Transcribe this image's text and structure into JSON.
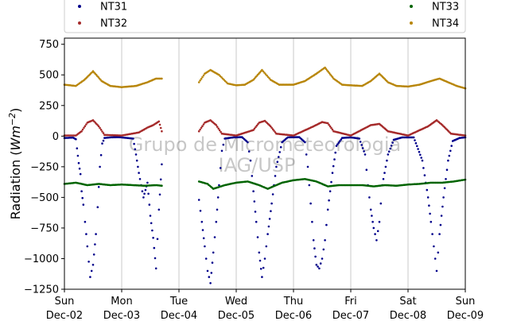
{
  "chart_data": {
    "type": "scatter",
    "ylabel": "Radiation (Wm⁻²)",
    "ylabel_main": "Radiation (",
    "ylabel_unit": "Wm",
    "ylabel_exp": "−2",
    "ylabel_close": ")",
    "xlabel": "",
    "ylim": [
      -1250,
      800
    ],
    "xlim": [
      0,
      7
    ],
    "yticks": [
      {
        "value": -1250,
        "label": "−1250"
      },
      {
        "value": -1000,
        "label": "−1000"
      },
      {
        "value": -750,
        "label": "−750"
      },
      {
        "value": -500,
        "label": "−500"
      },
      {
        "value": -250,
        "label": "−250"
      },
      {
        "value": 0,
        "label": "0"
      },
      {
        "value": 250,
        "label": "250"
      },
      {
        "value": 500,
        "label": "500"
      },
      {
        "value": 750,
        "label": "750"
      }
    ],
    "xticks": [
      {
        "value": 0,
        "day": "Sun",
        "date": "Dec-02"
      },
      {
        "value": 1,
        "day": "Mon",
        "date": "Dec-03"
      },
      {
        "value": 2,
        "day": "Tue",
        "date": "Dec-04"
      },
      {
        "value": 3,
        "day": "Wed",
        "date": "Dec-05"
      },
      {
        "value": 4,
        "day": "Thu",
        "date": "Dec-06"
      },
      {
        "value": 5,
        "day": "Fri",
        "date": "Dec-07"
      },
      {
        "value": 6,
        "day": "Sat",
        "date": "Dec-08"
      },
      {
        "value": 7,
        "day": "Sun",
        "date": "Dec-09"
      }
    ],
    "grid": "vertical",
    "legend_position": "top",
    "watermark_line1": "Grupo de Micrometeorologia",
    "watermark_line2": "IAG/USP",
    "data_gap": [
      1.72,
      2.35
    ],
    "series": [
      {
        "name": "NT31",
        "color": "#00008b",
        "points": [
          [
            0.0,
            -15
          ],
          [
            0.15,
            -12
          ],
          [
            0.2,
            -25
          ],
          [
            0.22,
            -100
          ],
          [
            0.25,
            -220
          ],
          [
            0.28,
            -310
          ],
          [
            0.3,
            -450
          ],
          [
            0.33,
            -560
          ],
          [
            0.36,
            -700
          ],
          [
            0.4,
            -900
          ],
          [
            0.45,
            -1150
          ],
          [
            0.5,
            -1050
          ],
          [
            0.55,
            -800
          ],
          [
            0.58,
            -580
          ],
          [
            0.62,
            -250
          ],
          [
            0.66,
            -60
          ],
          [
            0.7,
            -15
          ],
          [
            0.8,
            -10
          ],
          [
            0.95,
            -8
          ],
          [
            1.2,
            -20
          ],
          [
            1.25,
            -150
          ],
          [
            1.3,
            -300
          ],
          [
            1.38,
            -500
          ],
          [
            1.45,
            -380
          ],
          [
            1.5,
            -650
          ],
          [
            1.55,
            -830
          ],
          [
            1.6,
            -1080
          ],
          [
            1.65,
            -600
          ],
          [
            1.7,
            -230
          ],
          [
            2.35,
            -520
          ],
          [
            2.4,
            -700
          ],
          [
            2.45,
            -900
          ],
          [
            2.5,
            -1100
          ],
          [
            2.55,
            -1200
          ],
          [
            2.6,
            -950
          ],
          [
            2.65,
            -700
          ],
          [
            2.7,
            -400
          ],
          [
            2.75,
            -120
          ],
          [
            2.8,
            -20
          ],
          [
            2.95,
            -10
          ],
          [
            3.1,
            -8
          ],
          [
            3.2,
            -50
          ],
          [
            3.25,
            -200
          ],
          [
            3.3,
            -450
          ],
          [
            3.35,
            -700
          ],
          [
            3.4,
            -950
          ],
          [
            3.45,
            -1150
          ],
          [
            3.5,
            -1000
          ],
          [
            3.55,
            -800
          ],
          [
            3.62,
            -550
          ],
          [
            3.7,
            -250
          ],
          [
            3.8,
            -50
          ],
          [
            3.9,
            -10
          ],
          [
            4.1,
            -8
          ],
          [
            4.2,
            -50
          ],
          [
            4.25,
            -250
          ],
          [
            4.3,
            -550
          ],
          [
            4.35,
            -850
          ],
          [
            4.4,
            -1050
          ],
          [
            4.45,
            -1080
          ],
          [
            4.5,
            -1000
          ],
          [
            4.55,
            -850
          ],
          [
            4.6,
            -600
          ],
          [
            4.68,
            -300
          ],
          [
            4.75,
            -80
          ],
          [
            4.85,
            -15
          ],
          [
            5.0,
            -10
          ],
          [
            5.15,
            -20
          ],
          [
            5.25,
            -150
          ],
          [
            5.3,
            -400
          ],
          [
            5.35,
            -600
          ],
          [
            5.4,
            -750
          ],
          [
            5.45,
            -850
          ],
          [
            5.5,
            -700
          ],
          [
            5.55,
            -400
          ],
          [
            5.65,
            -150
          ],
          [
            5.75,
            -30
          ],
          [
            5.9,
            -10
          ],
          [
            6.1,
            -10
          ],
          [
            6.25,
            -200
          ],
          [
            6.35,
            -500
          ],
          [
            6.4,
            -700
          ],
          [
            6.45,
            -900
          ],
          [
            6.5,
            -1100
          ],
          [
            6.55,
            -800
          ],
          [
            6.62,
            -500
          ],
          [
            6.7,
            -200
          ],
          [
            6.78,
            -40
          ],
          [
            6.9,
            -15
          ],
          [
            7.0,
            -10
          ]
        ]
      },
      {
        "name": "NT32",
        "color": "#a52a2a",
        "points": [
          [
            0.0,
            5
          ],
          [
            0.2,
            5
          ],
          [
            0.3,
            40
          ],
          [
            0.4,
            110
          ],
          [
            0.5,
            130
          ],
          [
            0.6,
            80
          ],
          [
            0.7,
            10
          ],
          [
            1.0,
            5
          ],
          [
            1.3,
            30
          ],
          [
            1.45,
            70
          ],
          [
            1.55,
            90
          ],
          [
            1.65,
            120
          ],
          [
            1.7,
            40
          ],
          [
            2.35,
            40
          ],
          [
            2.45,
            110
          ],
          [
            2.55,
            130
          ],
          [
            2.65,
            90
          ],
          [
            2.75,
            20
          ],
          [
            3.0,
            5
          ],
          [
            3.3,
            50
          ],
          [
            3.4,
            110
          ],
          [
            3.5,
            125
          ],
          [
            3.6,
            80
          ],
          [
            3.7,
            20
          ],
          [
            4.0,
            5
          ],
          [
            4.35,
            80
          ],
          [
            4.5,
            115
          ],
          [
            4.6,
            105
          ],
          [
            4.7,
            40
          ],
          [
            5.0,
            5
          ],
          [
            5.35,
            90
          ],
          [
            5.5,
            100
          ],
          [
            5.65,
            40
          ],
          [
            6.0,
            5
          ],
          [
            6.35,
            80
          ],
          [
            6.5,
            130
          ],
          [
            6.6,
            90
          ],
          [
            6.75,
            20
          ],
          [
            7.0,
            5
          ]
        ]
      },
      {
        "name": "NT33",
        "color": "#006400",
        "points": [
          [
            0.0,
            -390
          ],
          [
            0.2,
            -380
          ],
          [
            0.4,
            -400
          ],
          [
            0.6,
            -390
          ],
          [
            0.8,
            -400
          ],
          [
            1.0,
            -395
          ],
          [
            1.2,
            -400
          ],
          [
            1.4,
            -405
          ],
          [
            1.6,
            -400
          ],
          [
            1.7,
            -405
          ],
          [
            2.35,
            -370
          ],
          [
            2.5,
            -390
          ],
          [
            2.6,
            -430
          ],
          [
            2.8,
            -400
          ],
          [
            3.0,
            -380
          ],
          [
            3.2,
            -370
          ],
          [
            3.4,
            -400
          ],
          [
            3.55,
            -430
          ],
          [
            3.8,
            -380
          ],
          [
            4.0,
            -360
          ],
          [
            4.2,
            -350
          ],
          [
            4.4,
            -370
          ],
          [
            4.6,
            -410
          ],
          [
            4.8,
            -400
          ],
          [
            5.0,
            -400
          ],
          [
            5.2,
            -400
          ],
          [
            5.4,
            -410
          ],
          [
            5.6,
            -400
          ],
          [
            5.8,
            -405
          ],
          [
            6.0,
            -395
          ],
          [
            6.2,
            -390
          ],
          [
            6.4,
            -380
          ],
          [
            6.6,
            -380
          ],
          [
            6.8,
            -370
          ],
          [
            7.0,
            -355
          ]
        ]
      },
      {
        "name": "NT34",
        "color": "#b8860b",
        "points": [
          [
            0.0,
            420
          ],
          [
            0.2,
            410
          ],
          [
            0.35,
            460
          ],
          [
            0.5,
            530
          ],
          [
            0.65,
            450
          ],
          [
            0.8,
            410
          ],
          [
            1.0,
            400
          ],
          [
            1.25,
            410
          ],
          [
            1.45,
            440
          ],
          [
            1.6,
            470
          ],
          [
            1.7,
            470
          ],
          [
            2.35,
            440
          ],
          [
            2.45,
            510
          ],
          [
            2.55,
            540
          ],
          [
            2.7,
            500
          ],
          [
            2.85,
            430
          ],
          [
            3.0,
            415
          ],
          [
            3.15,
            420
          ],
          [
            3.3,
            460
          ],
          [
            3.45,
            540
          ],
          [
            3.6,
            460
          ],
          [
            3.75,
            420
          ],
          [
            4.0,
            420
          ],
          [
            4.2,
            450
          ],
          [
            4.4,
            510
          ],
          [
            4.55,
            560
          ],
          [
            4.7,
            470
          ],
          [
            4.85,
            420
          ],
          [
            5.0,
            415
          ],
          [
            5.2,
            410
          ],
          [
            5.35,
            450
          ],
          [
            5.5,
            510
          ],
          [
            5.65,
            440
          ],
          [
            5.8,
            410
          ],
          [
            6.0,
            405
          ],
          [
            6.2,
            420
          ],
          [
            6.4,
            450
          ],
          [
            6.55,
            470
          ],
          [
            6.7,
            440
          ],
          [
            6.85,
            410
          ],
          [
            7.0,
            390
          ]
        ]
      }
    ]
  }
}
